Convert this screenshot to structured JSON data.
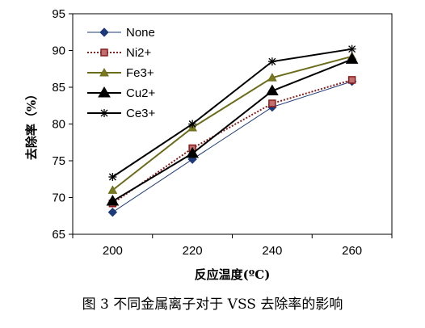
{
  "chart_data": {
    "type": "line",
    "title": "",
    "xlabel": "反应温度(ºC)",
    "ylabel": "去除率（%）",
    "x": [
      200,
      220,
      240,
      260
    ],
    "ylim": [
      65,
      95
    ],
    "yticks": [
      65,
      70,
      75,
      80,
      85,
      90,
      95
    ],
    "grid": false,
    "legend_position": "top-left",
    "series": [
      {
        "name": "None",
        "values": [
          68.0,
          75.2,
          82.3,
          85.8
        ],
        "marker": "diamond",
        "color": "#1f3a7a",
        "dash": "solid"
      },
      {
        "name": "Ni2+",
        "values": [
          69.2,
          76.7,
          82.8,
          86.0
        ],
        "marker": "square",
        "color": "#8b1a1a",
        "dash": "dotted"
      },
      {
        "name": "Fe3+",
        "values": [
          71.0,
          79.5,
          86.3,
          89.2
        ],
        "marker": "triangle-small",
        "color": "#6b6b1a",
        "dash": "solid"
      },
      {
        "name": "Cu2+",
        "values": [
          69.5,
          76.0,
          84.5,
          88.8
        ],
        "marker": "triangle",
        "color": "#000000",
        "dash": "solid"
      },
      {
        "name": "Ce3+",
        "values": [
          72.8,
          80.0,
          88.5,
          90.2
        ],
        "marker": "star",
        "color": "#000000",
        "dash": "solid"
      }
    ]
  },
  "caption": "图 3   不同金属离子对于 VSS 去除率的影响"
}
